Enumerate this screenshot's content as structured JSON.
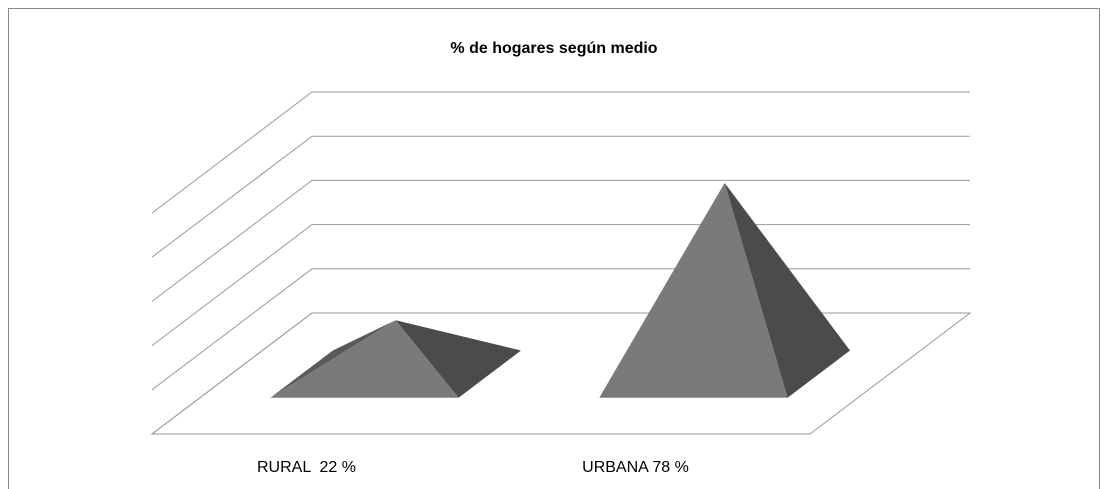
{
  "chart_data": {
    "type": "pyramid3d",
    "title": "% de hogares según medio",
    "categories": [
      "RURAL  22 %",
      "URBANA 78 %"
    ],
    "values": [
      22,
      78
    ],
    "colors": {
      "front": "#7a7a7a",
      "side": "#4b4b4b",
      "left": "#5a5a5a"
    },
    "ylim": [
      0,
      100
    ],
    "yticks": [
      0,
      20,
      40,
      60,
      80,
      100
    ],
    "grid": true
  }
}
